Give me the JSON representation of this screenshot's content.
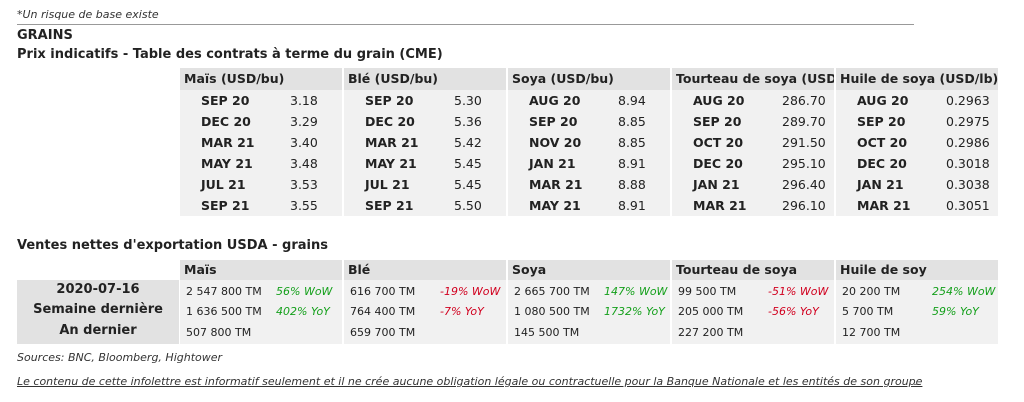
{
  "note": "*Un risque de base existe",
  "section_title": "GRAINS",
  "futures_title": "Prix indicatifs - Table des contrats à terme du grain (CME)",
  "futures": [
    {
      "header": "Maïs (USD/bu)",
      "rows": [
        {
          "month": "SEP 20",
          "price": "3.18"
        },
        {
          "month": "DEC 20",
          "price": "3.29"
        },
        {
          "month": "MAR 21",
          "price": "3.40"
        },
        {
          "month": "MAY 21",
          "price": "3.48"
        },
        {
          "month": "JUL 21",
          "price": "3.53"
        },
        {
          "month": "SEP 21",
          "price": "3.55"
        }
      ]
    },
    {
      "header": "Blé (USD/bu)",
      "rows": [
        {
          "month": "SEP 20",
          "price": "5.30"
        },
        {
          "month": "DEC 20",
          "price": "5.36"
        },
        {
          "month": "MAR 21",
          "price": "5.42"
        },
        {
          "month": "MAY 21",
          "price": "5.45"
        },
        {
          "month": "JUL 21",
          "price": "5.45"
        },
        {
          "month": "SEP 21",
          "price": "5.50"
        }
      ]
    },
    {
      "header": "Soya (USD/bu)",
      "rows": [
        {
          "month": "AUG 20",
          "price": "8.94"
        },
        {
          "month": "SEP 20",
          "price": "8.85"
        },
        {
          "month": "NOV 20",
          "price": "8.85"
        },
        {
          "month": "JAN 21",
          "price": "8.91"
        },
        {
          "month": "MAR 21",
          "price": "8.88"
        },
        {
          "month": "MAY 21",
          "price": "8.91"
        }
      ]
    },
    {
      "header": "Tourteau de soya (USD/ST",
      "rows": [
        {
          "month": "AUG 20",
          "price": "286.70"
        },
        {
          "month": "SEP 20",
          "price": "289.70"
        },
        {
          "month": "OCT 20",
          "price": "291.50"
        },
        {
          "month": "DEC 20",
          "price": "295.10"
        },
        {
          "month": "JAN 21",
          "price": "296.40"
        },
        {
          "month": "MAR 21",
          "price": "296.10"
        }
      ]
    },
    {
      "header": "Huile de soya (USD/lb)",
      "rows": [
        {
          "month": "AUG 20",
          "price": "0.2963"
        },
        {
          "month": "SEP 20",
          "price": "0.2975"
        },
        {
          "month": "OCT 20",
          "price": "0.2986"
        },
        {
          "month": "DEC 20",
          "price": "0.3018"
        },
        {
          "month": "JAN 21",
          "price": "0.3038"
        },
        {
          "month": "MAR 21",
          "price": "0.3051"
        }
      ]
    }
  ],
  "exports_title": "Ventes nettes d'exportation USDA - grains",
  "export_labels": [
    "2020-07-16",
    "Semaine dernière",
    "An dernier"
  ],
  "exports": [
    {
      "header": "Maïs",
      "rows": [
        {
          "value": "2 547 800 TM",
          "change": "56% WoW",
          "dir": "pos"
        },
        {
          "value": "1 636 500 TM",
          "change": "402% YoY",
          "dir": "pos"
        },
        {
          "value": "507 800 TM",
          "change": "",
          "dir": ""
        }
      ]
    },
    {
      "header": "Blé",
      "rows": [
        {
          "value": "616 700 TM",
          "change": "-19% WoW",
          "dir": "neg"
        },
        {
          "value": "764 400 TM",
          "change": "-7% YoY",
          "dir": "neg"
        },
        {
          "value": "659 700 TM",
          "change": "",
          "dir": ""
        }
      ]
    },
    {
      "header": "Soya",
      "rows": [
        {
          "value": "2 665 700 TM",
          "change": "147% WoW",
          "dir": "pos"
        },
        {
          "value": "1 080 500 TM",
          "change": "1732% YoY",
          "dir": "pos"
        },
        {
          "value": "145 500 TM",
          "change": "",
          "dir": ""
        }
      ]
    },
    {
      "header": "Tourteau de soya",
      "rows": [
        {
          "value": "99 500 TM",
          "change": "-51% WoW",
          "dir": "neg"
        },
        {
          "value": "205 000 TM",
          "change": "-56% YoY",
          "dir": "neg"
        },
        {
          "value": "227 200 TM",
          "change": "",
          "dir": ""
        }
      ]
    },
    {
      "header": "Huile de soy",
      "rows": [
        {
          "value": "20 200 TM",
          "change": "254% WoW",
          "dir": "pos"
        },
        {
          "value": "5 700 TM",
          "change": "59% YoY",
          "dir": "pos"
        },
        {
          "value": "12 700 TM",
          "change": "",
          "dir": ""
        }
      ]
    }
  ],
  "sources": "Sources: BNC, Bloomberg, Hightower",
  "disclaimer": "Le contenu de cette infolettre est informatif seulement et il ne crée aucune obligation légale ou contractuelle pour la Banque Nationale et les entités de son groupe",
  "trailing_mark": "_"
}
